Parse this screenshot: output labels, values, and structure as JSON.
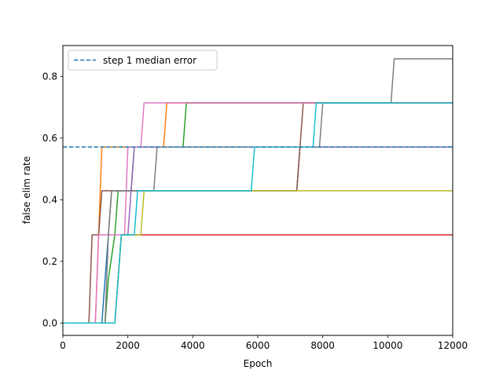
{
  "chart_data": {
    "type": "line",
    "title": "",
    "xlabel": "Epoch",
    "ylabel": "false elim rate",
    "xlim": [
      0,
      12000
    ],
    "ylim": [
      -0.04,
      0.9
    ],
    "xticks": [
      0,
      2000,
      4000,
      6000,
      8000,
      10000,
      12000
    ],
    "xtick_labels": [
      "0",
      "2000",
      "4000",
      "6000",
      "8000",
      "10000",
      "12000"
    ],
    "yticks": [
      0.0,
      0.2,
      0.4,
      0.6,
      0.8
    ],
    "ytick_labels": [
      "0.0",
      "0.2",
      "0.4",
      "0.6",
      "0.8"
    ],
    "grid": false,
    "legend": {
      "placement": "upper-left",
      "entries": [
        {
          "label": "step 1 median error",
          "color": "#1f77b4",
          "style": "dashed"
        }
      ]
    },
    "reference_line": {
      "label": "step 1 median error",
      "y": 0.571,
      "color": "#1f77b4",
      "style": "dashed"
    },
    "series": [
      {
        "color": "#1f77b4",
        "points": [
          [
            0,
            0
          ],
          [
            1200,
            0
          ],
          [
            1300,
            0.143
          ],
          [
            1400,
            0.286
          ],
          [
            1500,
            0.429
          ],
          [
            7200,
            0.429
          ],
          [
            7300,
            0.571
          ],
          [
            12000,
            0.571
          ]
        ]
      },
      {
        "color": "#ff7f0e",
        "points": [
          [
            0,
            0
          ],
          [
            1000,
            0
          ],
          [
            1100,
            0.286
          ],
          [
            1200,
            0.571
          ],
          [
            3100,
            0.571
          ],
          [
            3200,
            0.714
          ],
          [
            12000,
            0.714
          ]
        ]
      },
      {
        "color": "#2ca02c",
        "points": [
          [
            0,
            0
          ],
          [
            1300,
            0
          ],
          [
            1400,
            0.143
          ],
          [
            1600,
            0.286
          ],
          [
            1700,
            0.429
          ],
          [
            2100,
            0.429
          ],
          [
            2200,
            0.571
          ],
          [
            3700,
            0.571
          ],
          [
            3800,
            0.714
          ],
          [
            12000,
            0.714
          ]
        ]
      },
      {
        "color": "#d62728",
        "points": [
          [
            0,
            0
          ],
          [
            1600,
            0
          ],
          [
            1700,
            0.143
          ],
          [
            1800,
            0.286
          ],
          [
            12000,
            0.286
          ]
        ]
      },
      {
        "color": "#9467bd",
        "points": [
          [
            0,
            0
          ],
          [
            1600,
            0
          ],
          [
            1700,
            0.143
          ],
          [
            1800,
            0.286
          ],
          [
            2000,
            0.286
          ],
          [
            2100,
            0.429
          ],
          [
            2200,
            0.571
          ],
          [
            2300,
            0.571
          ],
          [
            12000,
            0.571
          ]
        ]
      },
      {
        "color": "#8c564b",
        "points": [
          [
            0,
            0
          ],
          [
            800,
            0
          ],
          [
            900,
            0.286
          ],
          [
            1100,
            0.286
          ],
          [
            1200,
            0.429
          ],
          [
            7200,
            0.429
          ],
          [
            7300,
            0.571
          ],
          [
            7400,
            0.714
          ],
          [
            12000,
            0.714
          ]
        ]
      },
      {
        "color": "#e377c2",
        "points": [
          [
            0,
            0
          ],
          [
            1000,
            0
          ],
          [
            1100,
            0.286
          ],
          [
            1900,
            0.286
          ],
          [
            2000,
            0.571
          ],
          [
            2400,
            0.571
          ],
          [
            2500,
            0.714
          ],
          [
            12000,
            0.714
          ]
        ]
      },
      {
        "color": "#7f7f7f",
        "points": [
          [
            0,
            0
          ],
          [
            1300,
            0
          ],
          [
            1400,
            0.286
          ],
          [
            1500,
            0.429
          ],
          [
            2800,
            0.429
          ],
          [
            2900,
            0.571
          ],
          [
            7900,
            0.571
          ],
          [
            8000,
            0.714
          ],
          [
            10100,
            0.714
          ],
          [
            10200,
            0.857
          ],
          [
            12000,
            0.857
          ]
        ]
      },
      {
        "color": "#bcbd22",
        "points": [
          [
            0,
            0
          ],
          [
            1600,
            0
          ],
          [
            1700,
            0.143
          ],
          [
            1800,
            0.286
          ],
          [
            2400,
            0.286
          ],
          [
            2500,
            0.429
          ],
          [
            12000,
            0.429
          ]
        ]
      },
      {
        "color": "#17becf",
        "points": [
          [
            0,
            0
          ],
          [
            1600,
            0
          ],
          [
            1700,
            0.143
          ],
          [
            1800,
            0.286
          ],
          [
            2200,
            0.286
          ],
          [
            2300,
            0.429
          ],
          [
            5800,
            0.429
          ],
          [
            5900,
            0.571
          ],
          [
            7700,
            0.571
          ],
          [
            7800,
            0.714
          ],
          [
            12000,
            0.714
          ]
        ]
      }
    ]
  }
}
